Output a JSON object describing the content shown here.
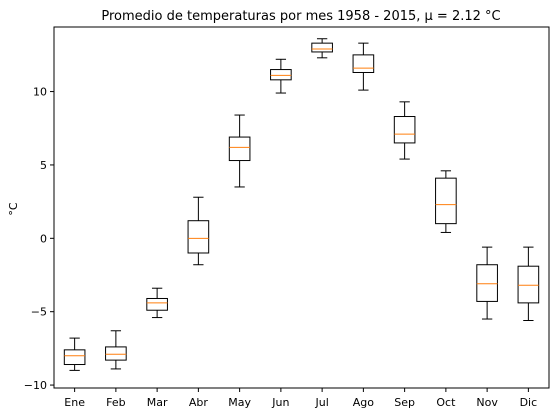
{
  "chart_data": {
    "type": "box",
    "title": "Promedio de temperaturas por mes 1958 - 2015, μ = 2.12 °C",
    "xlabel": "",
    "ylabel": "°C",
    "ylim": [
      -10.2,
      14.4
    ],
    "yticks": [
      -10,
      -5,
      0,
      5,
      10
    ],
    "ytick_labels": [
      "−10",
      "−5",
      "0",
      "5",
      "10"
    ],
    "grid": false,
    "categories": [
      "Ene",
      "Feb",
      "Mar",
      "Abr",
      "May",
      "Jun",
      "Jul",
      "Ago",
      "Sep",
      "Oct",
      "Nov",
      "Dic"
    ],
    "boxes": [
      {
        "whisker_low": -9.0,
        "q1": -8.6,
        "median": -8.0,
        "q3": -7.6,
        "whisker_high": -6.8
      },
      {
        "whisker_low": -8.9,
        "q1": -8.3,
        "median": -7.9,
        "q3": -7.4,
        "whisker_high": -6.3
      },
      {
        "whisker_low": -5.4,
        "q1": -4.9,
        "median": -4.4,
        "q3": -4.1,
        "whisker_high": -3.4
      },
      {
        "whisker_low": -1.8,
        "q1": -1.0,
        "median": 0.0,
        "q3": 1.2,
        "whisker_high": 2.8
      },
      {
        "whisker_low": 3.5,
        "q1": 5.3,
        "median": 6.2,
        "q3": 6.9,
        "whisker_high": 8.4
      },
      {
        "whisker_low": 9.9,
        "q1": 10.8,
        "median": 11.1,
        "q3": 11.5,
        "whisker_high": 12.2
      },
      {
        "whisker_low": 12.3,
        "q1": 12.7,
        "median": 12.9,
        "q3": 13.3,
        "whisker_high": 13.6
      },
      {
        "whisker_low": 10.1,
        "q1": 11.3,
        "median": 11.6,
        "q3": 12.5,
        "whisker_high": 13.3
      },
      {
        "whisker_low": 5.4,
        "q1": 6.5,
        "median": 7.1,
        "q3": 8.3,
        "whisker_high": 9.3
      },
      {
        "whisker_low": 0.4,
        "q1": 1.0,
        "median": 2.3,
        "q3": 4.1,
        "whisker_high": 4.6
      },
      {
        "whisker_low": -5.5,
        "q1": -4.3,
        "median": -3.1,
        "q3": -1.8,
        "whisker_high": -0.6
      },
      {
        "whisker_low": -5.6,
        "q1": -4.4,
        "median": -3.2,
        "q3": -1.9,
        "whisker_high": -0.6
      }
    ],
    "colors": {
      "box": "#000000",
      "median": "#ff7f0e",
      "background": "#ffffff"
    }
  }
}
